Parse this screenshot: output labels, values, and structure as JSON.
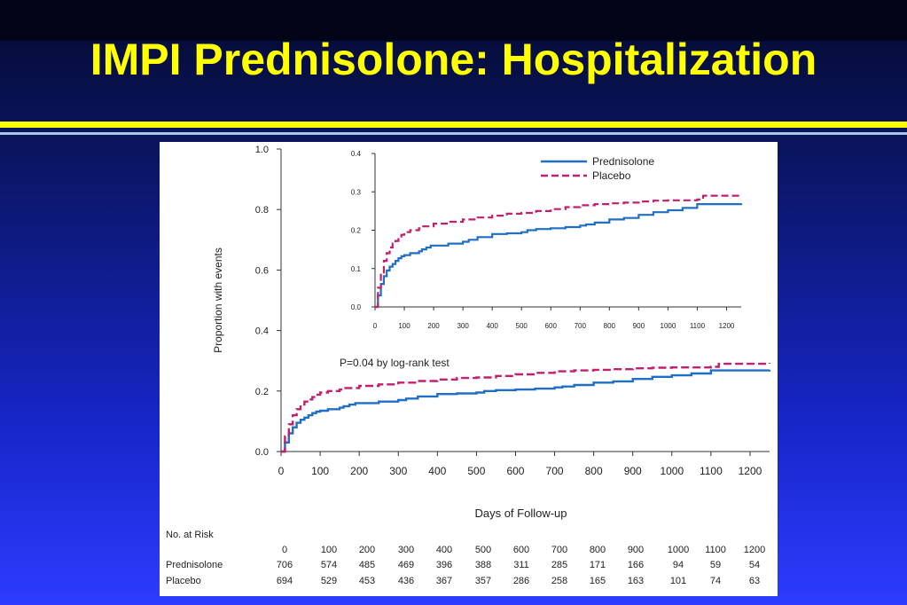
{
  "title": "IMPI Prednisolone: Hospitalization",
  "colors": {
    "prednisolone": "#1f6fc6",
    "placebo": "#c41e6e",
    "title": "#ffff00"
  },
  "chart_data": [
    {
      "type": "line",
      "ylabel": "Proportion with events",
      "xlabel": "Days of Follow-up",
      "xlim": [
        0,
        1250
      ],
      "ylim": [
        0,
        1.0
      ],
      "xticks": [
        0,
        100,
        200,
        300,
        400,
        500,
        600,
        700,
        800,
        900,
        1000,
        1100,
        1200
      ],
      "yticks": [
        "0.0",
        "0.2",
        "0.4",
        "0.6",
        "0.8",
        "1.0"
      ],
      "annotation": "P=0.04 by log-rank test",
      "series": [
        {
          "name": "Prednisolone",
          "x": [
            0,
            10,
            20,
            30,
            40,
            50,
            60,
            70,
            80,
            90,
            100,
            120,
            150,
            160,
            175,
            190,
            200,
            250,
            300,
            320,
            350,
            400,
            450,
            500,
            520,
            550,
            600,
            650,
            700,
            720,
            750,
            800,
            850,
            900,
            950,
            1000,
            1050,
            1100,
            1250
          ],
          "y": [
            0,
            0.03,
            0.06,
            0.08,
            0.095,
            0.105,
            0.112,
            0.12,
            0.127,
            0.132,
            0.135,
            0.14,
            0.145,
            0.15,
            0.155,
            0.16,
            0.16,
            0.165,
            0.17,
            0.175,
            0.182,
            0.19,
            0.192,
            0.195,
            0.2,
            0.203,
            0.205,
            0.208,
            0.212,
            0.215,
            0.22,
            0.228,
            0.232,
            0.24,
            0.247,
            0.252,
            0.258,
            0.268,
            0.27
          ]
        },
        {
          "name": "Placebo",
          "x": [
            0,
            10,
            20,
            30,
            40,
            50,
            60,
            70,
            80,
            90,
            100,
            120,
            150,
            160,
            200,
            250,
            300,
            350,
            400,
            450,
            500,
            550,
            600,
            650,
            700,
            750,
            800,
            850,
            900,
            950,
            1000,
            1100,
            1120,
            1250
          ],
          "y": [
            0,
            0.05,
            0.09,
            0.12,
            0.14,
            0.155,
            0.165,
            0.172,
            0.18,
            0.188,
            0.195,
            0.2,
            0.205,
            0.21,
            0.217,
            0.222,
            0.228,
            0.233,
            0.238,
            0.243,
            0.245,
            0.25,
            0.255,
            0.26,
            0.265,
            0.268,
            0.27,
            0.272,
            0.275,
            0.277,
            0.278,
            0.28,
            0.29,
            0.293
          ]
        }
      ],
      "risk_table": {
        "header": "No. at Risk",
        "days": [
          "0",
          "100",
          "200",
          "300",
          "400",
          "500",
          "600",
          "700",
          "800",
          "900",
          "1000",
          "1100",
          "1200"
        ],
        "rows": [
          {
            "name": "Prednisolone",
            "values": [
              "706",
              "574",
              "485",
              "469",
              "396",
              "388",
              "311",
              "285",
              "171",
              "166",
              "94",
              "59",
              "54"
            ]
          },
          {
            "name": "Placebo",
            "values": [
              "694",
              "529",
              "453",
              "436",
              "367",
              "357",
              "286",
              "258",
              "165",
              "163",
              "101",
              "74",
              "63"
            ]
          }
        ]
      }
    },
    {
      "type": "line",
      "xlim": [
        0,
        1250
      ],
      "ylim": [
        0,
        0.4
      ],
      "xticks": [
        0,
        100,
        200,
        300,
        400,
        500,
        600,
        700,
        800,
        900,
        1000,
        1100,
        1200
      ],
      "yticks": [
        "0.0",
        "0.1",
        "0.2",
        "0.3",
        "0.4"
      ],
      "legend": "top-right",
      "series": [
        {
          "name": "Prednisolone"
        },
        {
          "name": "Placebo"
        }
      ]
    }
  ]
}
